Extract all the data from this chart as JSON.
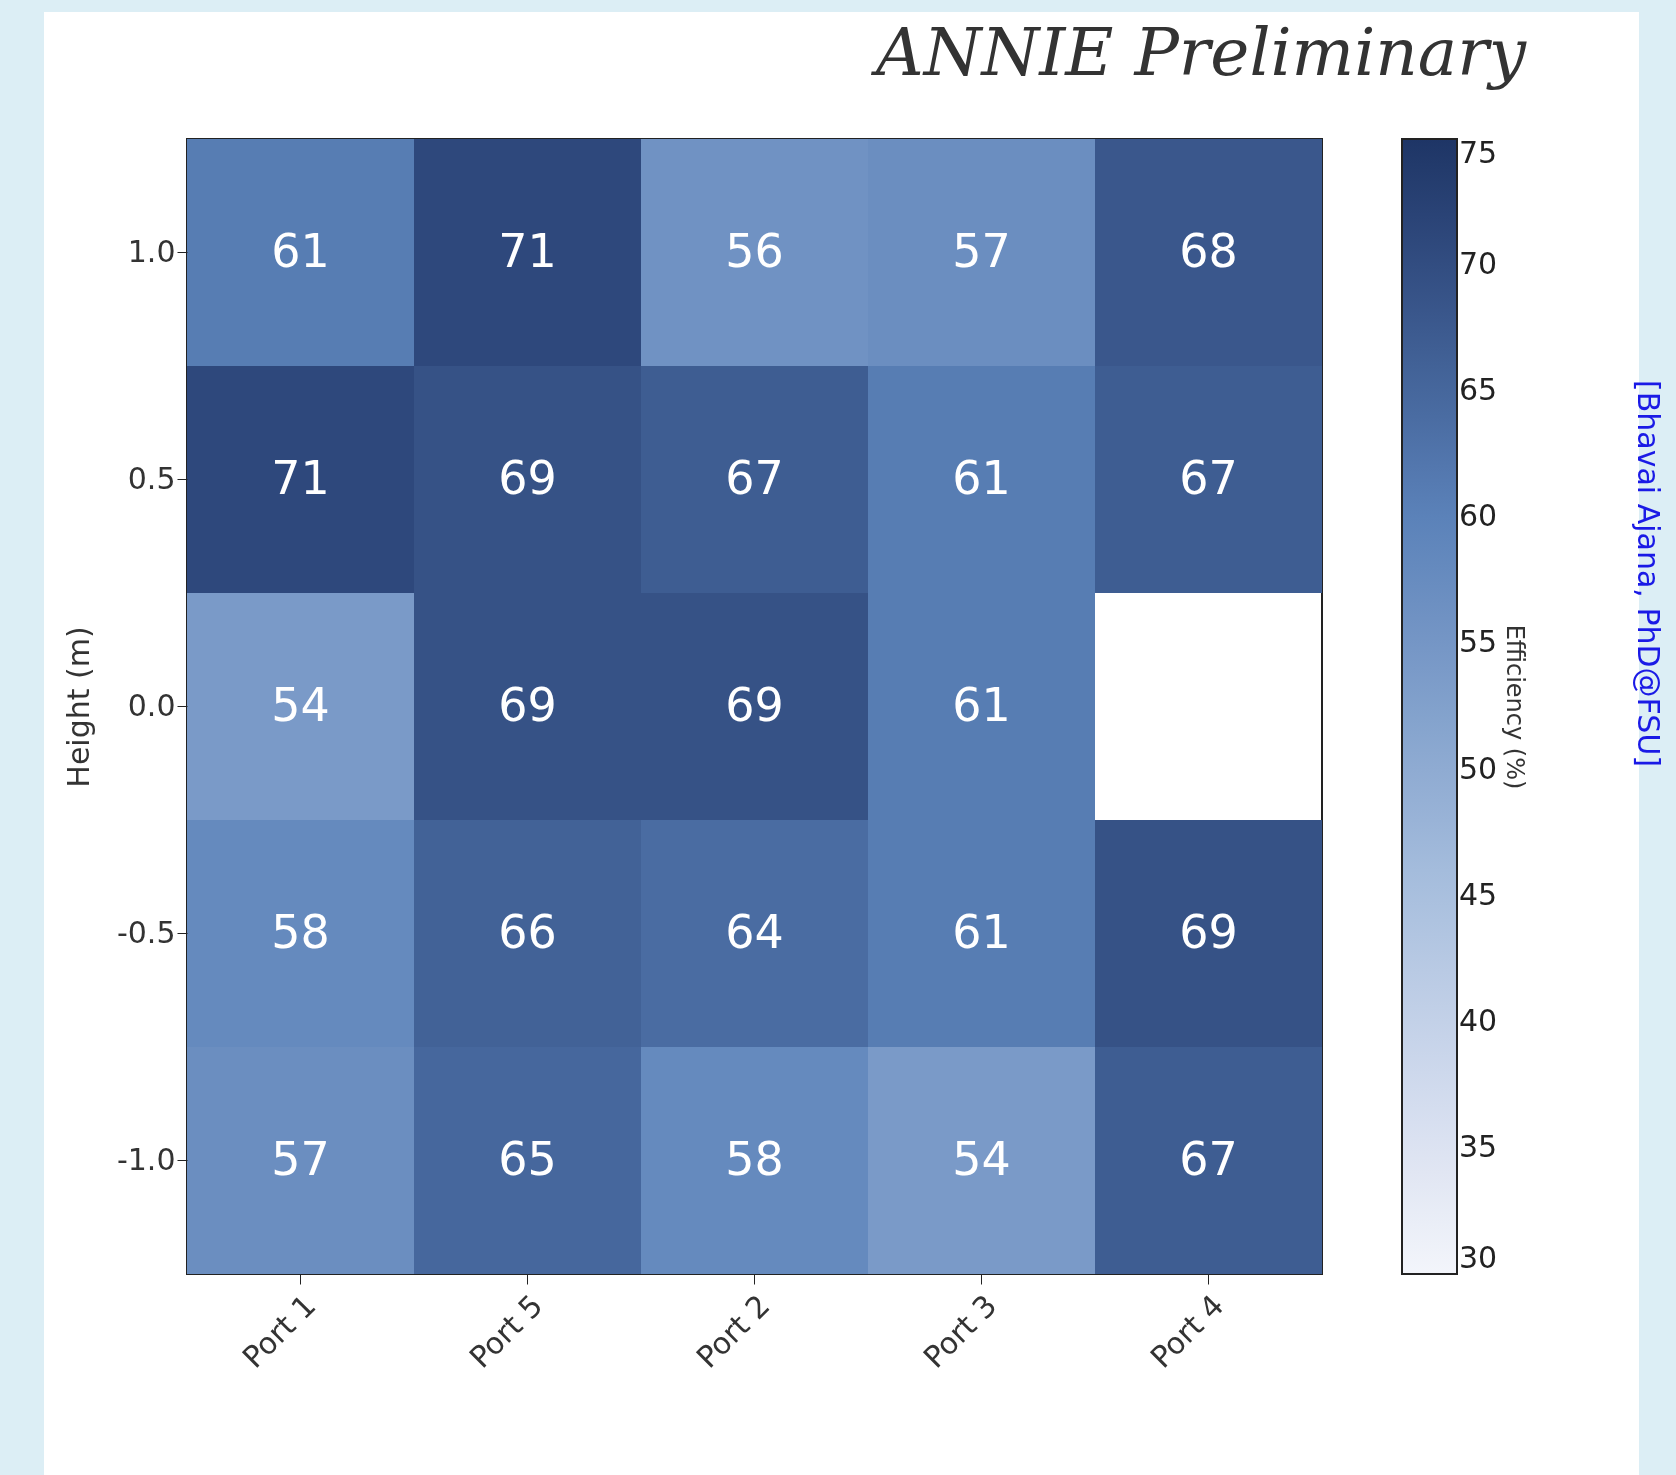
{
  "chart_data": {
    "type": "heatmap",
    "title": "ANNIE Preliminary",
    "ylabel": "Height (m)",
    "clabel": "Efficiency (%)",
    "categories": [
      "Port 1",
      "Port 5",
      "Port 2",
      "Port 3",
      "Port 4"
    ],
    "y_categories": [
      "1.0",
      "0.5",
      "0.0",
      "-0.5",
      "-1.0"
    ],
    "cells": [
      [
        61,
        71,
        56,
        57,
        68
      ],
      [
        71,
        69,
        67,
        61,
        67
      ],
      [
        54,
        69,
        69,
        61,
        null
      ],
      [
        58,
        66,
        64,
        61,
        69
      ],
      [
        57,
        65,
        58,
        54,
        67
      ]
    ],
    "data_labels": true,
    "clim": [
      30,
      75
    ],
    "cticks": [
      30,
      35,
      40,
      45,
      50,
      55,
      60,
      65,
      70,
      75
    ],
    "annotations": [
      "[Bhavai Ajana, PhD@FSU]"
    ]
  }
}
